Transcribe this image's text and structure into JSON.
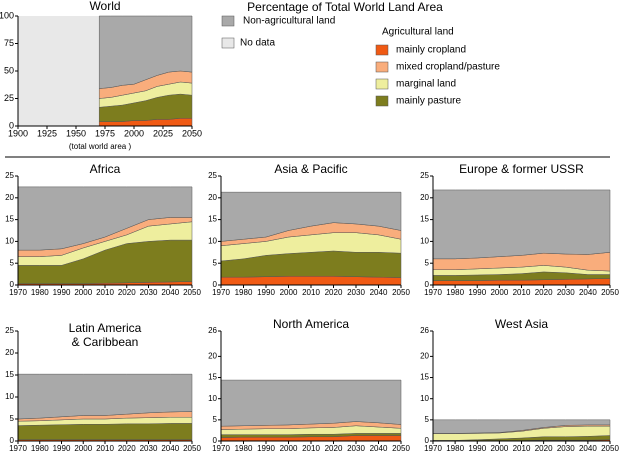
{
  "title": "Percentage of Total World Land Area",
  "chart_data": [
    {
      "type": "stacked-area",
      "title": "World",
      "xlabel": "(total world area )",
      "x": [
        1970,
        1980,
        1990,
        2000,
        2010,
        2020,
        2030,
        2040,
        2050
      ],
      "xlim": [
        1900,
        2050
      ],
      "xticks": [
        1900,
        1925,
        1950,
        1975,
        2000,
        2025,
        2050
      ],
      "ylim": [
        0,
        100
      ],
      "yticks": [
        0,
        25,
        50,
        75,
        100
      ],
      "no_data": {
        "label": "No data",
        "range": [
          1900,
          1970
        ],
        "color": "#e8e8e8"
      },
      "legend_title": "Agricultural land",
      "series": [
        {
          "name": "mainly cropland",
          "color": "#f05a14",
          "values": [
            4,
            4,
            4,
            5,
            5,
            6,
            6,
            7,
            7
          ]
        },
        {
          "name": "mainly pasture",
          "color": "#7d7d1e",
          "values": [
            13,
            14,
            15,
            16,
            18,
            20,
            22,
            22,
            21
          ]
        },
        {
          "name": "marginal land",
          "color": "#eeee9e",
          "values": [
            8,
            8,
            9,
            9,
            9,
            10,
            10,
            11,
            11
          ]
        },
        {
          "name": "mixed cropland/pasture",
          "color": "#f9ad7c",
          "values": [
            9,
            9,
            9,
            8,
            10,
            10,
            11,
            10,
            10
          ]
        },
        {
          "name": "Non-agricultural land",
          "color": "#a9a9a9",
          "values": [
            66,
            65,
            63,
            62,
            58,
            54,
            51,
            50,
            51
          ]
        }
      ]
    },
    {
      "type": "stacked-area",
      "title": "Africa",
      "x": [
        1970,
        1980,
        1990,
        2000,
        2010,
        2020,
        2030,
        2040,
        2050
      ],
      "xlim": [
        1970,
        2050
      ],
      "xticks": [
        1970,
        1980,
        1990,
        2000,
        2010,
        2020,
        2030,
        2040,
        2050
      ],
      "ylim": [
        0,
        25
      ],
      "yticks": [
        0,
        5,
        10,
        15,
        20,
        25
      ],
      "series": [
        {
          "color": "#f05a14",
          "values": [
            0.3,
            0.3,
            0.3,
            0.3,
            0.4,
            0.5,
            0.6,
            0.7,
            0.8
          ]
        },
        {
          "color": "#7d7d1e",
          "values": [
            4.2,
            4.2,
            4.2,
            5.7,
            7.6,
            9,
            9.4,
            9.6,
            9.5
          ]
        },
        {
          "color": "#eeee9e",
          "values": [
            2,
            2,
            2.3,
            2.5,
            2,
            2,
            3.5,
            3.7,
            4.2
          ]
        },
        {
          "color": "#f9ad7c",
          "values": [
            1.5,
            1.5,
            1.5,
            1,
            1,
            1.5,
            1.5,
            1.5,
            1
          ]
        },
        {
          "color": "#a9a9a9",
          "values": [
            14.5,
            14.5,
            14.2,
            13,
            11.5,
            9.5,
            7.5,
            7,
            7
          ]
        }
      ]
    },
    {
      "type": "stacked-area",
      "title": "Asia & Pacific",
      "x": [
        1970,
        1980,
        1990,
        2000,
        2010,
        2020,
        2030,
        2040,
        2050
      ],
      "xlim": [
        1970,
        2050
      ],
      "xticks": [
        1970,
        1980,
        1990,
        2000,
        2010,
        2020,
        2030,
        2040,
        2050
      ],
      "ylim": [
        0,
        25
      ],
      "yticks": [
        0,
        5,
        10,
        15,
        20,
        25
      ],
      "series": [
        {
          "color": "#f05a14",
          "values": [
            1.8,
            1.8,
            1.9,
            2,
            2,
            2,
            1.9,
            1.8,
            1.7
          ]
        },
        {
          "color": "#7d7d1e",
          "values": [
            3.7,
            4.2,
            4.9,
            5.2,
            5.5,
            5.8,
            5.6,
            5.7,
            5.6
          ]
        },
        {
          "color": "#eeee9e",
          "values": [
            3.5,
            3.5,
            3.2,
            3.8,
            4,
            4.2,
            4.5,
            4,
            3.2
          ]
        },
        {
          "color": "#f9ad7c",
          "values": [
            1,
            1,
            1,
            1.5,
            2,
            2.3,
            2,
            2,
            2
          ]
        },
        {
          "color": "#a9a9a9",
          "values": [
            11.3,
            10.8,
            10.3,
            8.8,
            7.8,
            7,
            7.3,
            7.8,
            8.8
          ]
        }
      ]
    },
    {
      "type": "stacked-area",
      "title": "Europe & former USSR",
      "x": [
        1970,
        1980,
        1990,
        2000,
        2010,
        2020,
        2030,
        2040,
        2050
      ],
      "xlim": [
        1970,
        2050
      ],
      "xticks": [
        1970,
        1980,
        1990,
        2000,
        2010,
        2020,
        2030,
        2040,
        2050
      ],
      "ylim": [
        0,
        25
      ],
      "yticks": [
        0,
        5,
        10,
        15,
        20,
        25
      ],
      "series": [
        {
          "color": "#f05a14",
          "values": [
            1,
            1,
            1,
            1.1,
            1.1,
            1.2,
            1.3,
            1.4,
            1.5
          ]
        },
        {
          "color": "#7d7d1e",
          "values": [
            1.2,
            1.2,
            1.3,
            1.3,
            1.5,
            1.8,
            1.5,
            1,
            0.9
          ]
        },
        {
          "color": "#eeee9e",
          "values": [
            1.3,
            1.3,
            1.4,
            1.5,
            1.5,
            1.5,
            1.3,
            1,
            0.8
          ]
        },
        {
          "color": "#f9ad7c",
          "values": [
            2.5,
            2.5,
            2.5,
            2.6,
            2.7,
            2.8,
            3,
            3.6,
            4.3
          ]
        },
        {
          "color": "#a9a9a9",
          "values": [
            15.8,
            15.8,
            15.6,
            15.3,
            15,
            14.5,
            14.7,
            14.8,
            14.3
          ]
        }
      ]
    },
    {
      "type": "stacked-area",
      "title": "Latin America\n& Caribbean",
      "x": [
        1970,
        1980,
        1990,
        2000,
        2010,
        2020,
        2030,
        2040,
        2050
      ],
      "xlim": [
        1970,
        2050
      ],
      "xticks": [
        1970,
        1980,
        1990,
        2000,
        2010,
        2020,
        2030,
        2040,
        2050
      ],
      "ylim": [
        0,
        25
      ],
      "yticks": [
        0,
        5,
        10,
        15,
        20,
        25
      ],
      "series": [
        {
          "color": "#f05a14",
          "values": [
            0.3,
            0.3,
            0.3,
            0.3,
            0.3,
            0.3,
            0.3,
            0.3,
            0.3
          ]
        },
        {
          "color": "#7d7d1e",
          "values": [
            3.2,
            3.3,
            3.4,
            3.5,
            3.5,
            3.6,
            3.6,
            3.7,
            3.7
          ]
        },
        {
          "color": "#eeee9e",
          "values": [
            1,
            1,
            1.1,
            1.2,
            1.2,
            1.3,
            1.4,
            1.4,
            1.4
          ]
        },
        {
          "color": "#f9ad7c",
          "values": [
            0.5,
            0.6,
            0.7,
            0.8,
            0.8,
            0.9,
            1.1,
            1.2,
            1.3
          ]
        },
        {
          "color": "#a9a9a9",
          "values": [
            10.2,
            10,
            9.7,
            9.4,
            9.4,
            9.1,
            8.8,
            8.6,
            8.5
          ]
        }
      ]
    },
    {
      "type": "stacked-area",
      "title": "North America",
      "x": [
        1970,
        1980,
        1990,
        2000,
        2010,
        2020,
        2030,
        2040,
        2050
      ],
      "xlim": [
        1970,
        2050
      ],
      "xticks": [
        1970,
        1980,
        1990,
        2000,
        2010,
        2020,
        2030,
        2040,
        2050
      ],
      "ylim": [
        0,
        26
      ],
      "yticks": [
        0,
        5,
        10,
        15,
        20,
        26
      ],
      "series": [
        {
          "color": "#f05a14",
          "values": [
            0.8,
            0.9,
            0.9,
            0.9,
            1,
            1,
            1.3,
            1.3,
            1.3
          ]
        },
        {
          "color": "#7d7d1e",
          "values": [
            0.7,
            0.6,
            0.6,
            0.6,
            0.6,
            0.6,
            0.5,
            0.5,
            0.5
          ]
        },
        {
          "color": "#eeee9e",
          "values": [
            1.2,
            1.3,
            1.4,
            1.4,
            1.5,
            1.6,
            1.8,
            1.5,
            1.2
          ]
        },
        {
          "color": "#f9ad7c",
          "values": [
            0.8,
            0.8,
            0.8,
            0.9,
            0.9,
            1,
            1,
            1,
            0.9
          ]
        },
        {
          "color": "#a9a9a9",
          "values": [
            10.9,
            10.8,
            10.7,
            10.6,
            10.4,
            10.2,
            9.8,
            10.1,
            10.5
          ]
        }
      ]
    },
    {
      "type": "stacked-area",
      "title": "West Asia",
      "x": [
        1970,
        1980,
        1990,
        2000,
        2010,
        2020,
        2030,
        2040,
        2050
      ],
      "xlim": [
        1970,
        2050
      ],
      "xticks": [
        1970,
        1980,
        1990,
        2000,
        2010,
        2020,
        2030,
        2040,
        2050
      ],
      "ylim": [
        0,
        26
      ],
      "yticks": [
        0,
        5,
        10,
        15,
        20,
        26
      ],
      "series": [
        {
          "color": "#f05a14",
          "values": [
            0.05,
            0.05,
            0.1,
            0.1,
            0.1,
            0.2,
            0.2,
            0.2,
            0.3
          ]
        },
        {
          "color": "#7d7d1e",
          "values": [
            0.1,
            0.1,
            0.2,
            0.4,
            0.6,
            0.8,
            0.8,
            0.9,
            1
          ]
        },
        {
          "color": "#eeee9e",
          "values": [
            1.6,
            1.6,
            1.5,
            1.4,
            1.6,
            2,
            2.4,
            2.4,
            2.2
          ]
        },
        {
          "color": "#f9ad7c",
          "values": [
            0.05,
            0.05,
            0.1,
            0.1,
            0.2,
            0.2,
            0.3,
            0.3,
            0.3
          ]
        },
        {
          "color": "#a9a9a9",
          "values": [
            3.2,
            3.2,
            3.1,
            3,
            2.5,
            1.8,
            1.3,
            1.2,
            1.2
          ]
        }
      ]
    }
  ]
}
